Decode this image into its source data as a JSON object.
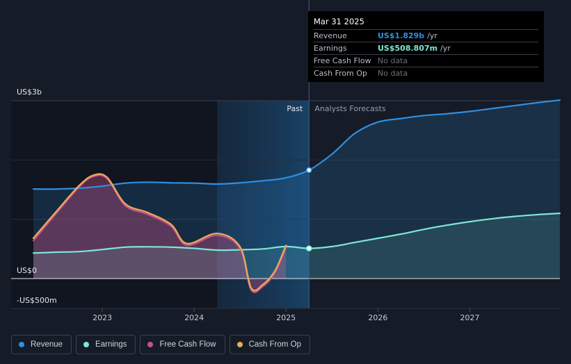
{
  "tooltip": {
    "date": "Mar 31 2025",
    "rows": [
      {
        "label": "Revenue",
        "value": "US$1.829b",
        "unit": "/yr",
        "color": "#2f8fe0"
      },
      {
        "label": "Earnings",
        "value": "US$508.807m",
        "unit": "/yr",
        "color": "#7de8d3"
      },
      {
        "label": "Free Cash Flow",
        "value": "No data",
        "unit": "",
        "color": ""
      },
      {
        "label": "Cash From Op",
        "value": "No data",
        "unit": "",
        "color": ""
      }
    ]
  },
  "labels": {
    "past": "Past",
    "forecast": "Analysts Forecasts"
  },
  "chart_data": {
    "type": "line",
    "y_tick_labels": [
      {
        "value": 3000,
        "label": "US$3b"
      },
      {
        "value": 0,
        "label": "US$0"
      },
      {
        "value": -500,
        "label": "-US$500m"
      }
    ],
    "ylim": [
      -500,
      3000
    ],
    "xlim": [
      2022.25,
      2027.98
    ],
    "x_ticks": [
      2023,
      2024,
      2025,
      2026,
      2027
    ],
    "past_end": 2025.25,
    "highlight_start": 2024.25,
    "grid": true,
    "series": [
      {
        "name": "Revenue",
        "color": "#2f8fe0",
        "fill": true,
        "x": [
          2022.25,
          2022.5,
          2022.75,
          2023.0,
          2023.25,
          2023.5,
          2023.75,
          2024.0,
          2024.25,
          2024.5,
          2024.75,
          2025.0,
          2025.25,
          2025.5,
          2025.75,
          2026.0,
          2026.25,
          2026.5,
          2026.75,
          2027.0,
          2027.25,
          2027.5,
          2027.75,
          2027.98
        ],
        "y": [
          1510,
          1510,
          1525,
          1560,
          1610,
          1625,
          1615,
          1610,
          1595,
          1615,
          1650,
          1700,
          1829,
          2100,
          2450,
          2640,
          2700,
          2750,
          2780,
          2820,
          2870,
          2920,
          2970,
          3010
        ]
      },
      {
        "name": "Earnings",
        "color": "#7de8d3",
        "fill": true,
        "x": [
          2022.25,
          2022.5,
          2022.75,
          2023.0,
          2023.25,
          2023.5,
          2023.75,
          2024.0,
          2024.25,
          2024.5,
          2024.75,
          2025.0,
          2025.25,
          2025.5,
          2025.75,
          2026.0,
          2026.25,
          2026.5,
          2026.75,
          2027.0,
          2027.25,
          2027.5,
          2027.75,
          2027.98
        ],
        "y": [
          430,
          445,
          455,
          490,
          530,
          535,
          530,
          510,
          480,
          485,
          500,
          540,
          509,
          540,
          610,
          680,
          750,
          830,
          900,
          960,
          1010,
          1050,
          1080,
          1100
        ]
      },
      {
        "name": "Free Cash Flow",
        "color": "#c94f86",
        "fill": true,
        "x": [
          2022.25,
          2022.5,
          2022.75,
          2022.9,
          2023.05,
          2023.25,
          2023.5,
          2023.75,
          2023.92,
          2024.25,
          2024.5,
          2024.62,
          2024.75,
          2024.88,
          2025.0
        ],
        "y": [
          640,
          1100,
          1550,
          1720,
          1690,
          1230,
          1080,
          880,
          560,
          730,
          500,
          -190,
          -130,
          100,
          530
        ]
      },
      {
        "name": "Cash From Op",
        "color": "#e9a95c",
        "fill": false,
        "x": [
          2022.25,
          2022.5,
          2022.75,
          2022.9,
          2023.05,
          2023.25,
          2023.5,
          2023.75,
          2023.92,
          2024.25,
          2024.5,
          2024.62,
          2024.75,
          2024.88,
          2025.0
        ],
        "y": [
          680,
          1130,
          1570,
          1740,
          1710,
          1260,
          1110,
          910,
          590,
          760,
          530,
          -160,
          -100,
          130,
          560
        ]
      }
    ],
    "markers": [
      {
        "series": "Revenue",
        "x": 2025.25,
        "y": 1829
      },
      {
        "series": "Earnings",
        "x": 2025.25,
        "y": 509
      }
    ]
  },
  "legend": [
    {
      "label": "Revenue",
      "color": "#2f8fe0"
    },
    {
      "label": "Earnings",
      "color": "#7de8d3"
    },
    {
      "label": "Free Cash Flow",
      "color": "#c94f86"
    },
    {
      "label": "Cash From Op",
      "color": "#e9a95c"
    }
  ]
}
